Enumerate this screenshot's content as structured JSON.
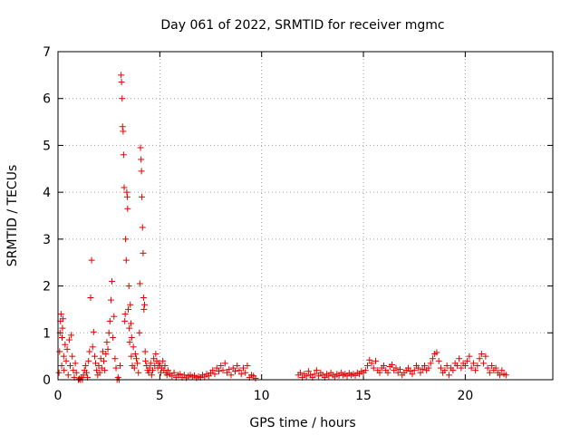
{
  "chart_data": {
    "type": "scatter",
    "title": "Day 061 of 2022, SRMTID for receiver mgmc",
    "xlabel": "GPS time / hours",
    "ylabel": "SRMTID / TECUs",
    "xlim": [
      0,
      24.3
    ],
    "ylim": [
      0,
      7
    ],
    "xticks": [
      0,
      5,
      10,
      15,
      20
    ],
    "yticks": [
      0,
      1,
      2,
      3,
      4,
      5,
      6,
      7
    ],
    "grid": true,
    "marker": "plus",
    "color": "#e00000",
    "series": [
      {
        "name": "SRMTID",
        "points": [
          [
            0.05,
            0.15
          ],
          [
            0.08,
            0.6
          ],
          [
            0.1,
            1.0
          ],
          [
            0.12,
            1.25
          ],
          [
            0.15,
            1.4
          ],
          [
            0.18,
            0.3
          ],
          [
            0.2,
            0.9
          ],
          [
            0.22,
            1.1
          ],
          [
            0.25,
            1.3
          ],
          [
            0.28,
            0.5
          ],
          [
            0.3,
            0.2
          ],
          [
            0.35,
            0.75
          ],
          [
            0.4,
            0.4
          ],
          [
            0.45,
            0.65
          ],
          [
            0.5,
            0.1
          ],
          [
            0.55,
            0.85
          ],
          [
            0.6,
            0.3
          ],
          [
            0.65,
            0.95
          ],
          [
            0.7,
            0.5
          ],
          [
            0.75,
            0.2
          ],
          [
            0.8,
            0.05
          ],
          [
            0.85,
            0.35
          ],
          [
            0.9,
            0.15
          ],
          [
            1.0,
            0.0
          ],
          [
            1.05,
            0.02
          ],
          [
            1.1,
            0.0
          ],
          [
            1.15,
            0.05
          ],
          [
            1.2,
            0.0
          ],
          [
            1.25,
            0.1
          ],
          [
            1.3,
            0.2
          ],
          [
            1.35,
            0.3
          ],
          [
            1.4,
            0.15
          ],
          [
            1.45,
            0.05
          ],
          [
            1.5,
            0.4
          ],
          [
            1.55,
            0.6
          ],
          [
            1.6,
            1.75
          ],
          [
            1.65,
            2.55
          ],
          [
            1.7,
            0.7
          ],
          [
            1.75,
            1.02
          ],
          [
            1.8,
            0.5
          ],
          [
            1.85,
            0.35
          ],
          [
            1.9,
            0.2
          ],
          [
            1.95,
            0.1
          ],
          [
            2.0,
            0.3
          ],
          [
            2.05,
            0.15
          ],
          [
            2.1,
            0.45
          ],
          [
            2.15,
            0.25
          ],
          [
            2.2,
            0.6
          ],
          [
            2.25,
            0.4
          ],
          [
            2.3,
            0.2
          ],
          [
            2.35,
            0.55
          ],
          [
            2.4,
            0.8
          ],
          [
            2.45,
            0.65
          ],
          [
            2.5,
            1.0
          ],
          [
            2.55,
            1.25
          ],
          [
            2.6,
            1.7
          ],
          [
            2.65,
            2.1
          ],
          [
            2.7,
            0.9
          ],
          [
            2.75,
            1.35
          ],
          [
            2.8,
            0.45
          ],
          [
            2.85,
            0.25
          ],
          [
            2.9,
            0.0
          ],
          [
            2.95,
            0.05
          ],
          [
            3.0,
            0.0
          ],
          [
            3.05,
            0.3
          ],
          [
            3.1,
            6.5
          ],
          [
            3.12,
            6.35
          ],
          [
            3.15,
            6.0
          ],
          [
            3.17,
            5.4
          ],
          [
            3.2,
            5.3
          ],
          [
            3.22,
            4.8
          ],
          [
            3.25,
            4.1
          ],
          [
            3.28,
            1.25
          ],
          [
            3.3,
            1.4
          ],
          [
            3.32,
            3.0
          ],
          [
            3.35,
            2.55
          ],
          [
            3.38,
            4.0
          ],
          [
            3.4,
            3.9
          ],
          [
            3.42,
            3.65
          ],
          [
            3.45,
            1.5
          ],
          [
            3.48,
            2.0
          ],
          [
            3.5,
            1.1
          ],
          [
            3.52,
            0.8
          ],
          [
            3.55,
            1.6
          ],
          [
            3.58,
            1.2
          ],
          [
            3.6,
            0.5
          ],
          [
            3.62,
            0.9
          ],
          [
            3.65,
            0.3
          ],
          [
            3.7,
            0.7
          ],
          [
            3.75,
            0.25
          ],
          [
            3.8,
            0.55
          ],
          [
            3.85,
            0.45
          ],
          [
            3.9,
            0.35
          ],
          [
            3.95,
            0.15
          ],
          [
            4.0,
            1.0
          ],
          [
            4.02,
            2.05
          ],
          [
            4.05,
            4.95
          ],
          [
            4.08,
            4.7
          ],
          [
            4.1,
            4.45
          ],
          [
            4.12,
            3.9
          ],
          [
            4.15,
            3.25
          ],
          [
            4.18,
            2.7
          ],
          [
            4.2,
            1.75
          ],
          [
            4.22,
            1.5
          ],
          [
            4.25,
            1.6
          ],
          [
            4.28,
            0.6
          ],
          [
            4.3,
            0.4
          ],
          [
            4.35,
            0.3
          ],
          [
            4.4,
            0.2
          ],
          [
            4.45,
            0.15
          ],
          [
            4.5,
            0.25
          ],
          [
            4.55,
            0.35
          ],
          [
            4.6,
            0.1
          ],
          [
            4.65,
            0.2
          ],
          [
            4.7,
            0.45
          ],
          [
            4.75,
            0.3
          ],
          [
            4.8,
            0.55
          ],
          [
            4.85,
            0.4
          ],
          [
            4.9,
            0.25
          ],
          [
            4.95,
            0.35
          ],
          [
            5.0,
            0.3
          ],
          [
            5.05,
            0.15
          ],
          [
            5.1,
            0.25
          ],
          [
            5.15,
            0.4
          ],
          [
            5.2,
            0.2
          ],
          [
            5.25,
            0.3
          ],
          [
            5.3,
            0.15
          ],
          [
            5.35,
            0.1
          ],
          [
            5.4,
            0.2
          ],
          [
            5.5,
            0.12
          ],
          [
            5.6,
            0.08
          ],
          [
            5.7,
            0.15
          ],
          [
            5.8,
            0.05
          ],
          [
            5.9,
            0.1
          ],
          [
            6.0,
            0.12
          ],
          [
            6.1,
            0.05
          ],
          [
            6.2,
            0.1
          ],
          [
            6.3,
            0.04
          ],
          [
            6.4,
            0.08
          ],
          [
            6.5,
            0.1
          ],
          [
            6.6,
            0.06
          ],
          [
            6.7,
            0.09
          ],
          [
            6.8,
            0.04
          ],
          [
            6.9,
            0.07
          ],
          [
            7.0,
            0.05
          ],
          [
            7.1,
            0.1
          ],
          [
            7.2,
            0.06
          ],
          [
            7.3,
            0.12
          ],
          [
            7.4,
            0.08
          ],
          [
            7.5,
            0.15
          ],
          [
            7.6,
            0.2
          ],
          [
            7.7,
            0.12
          ],
          [
            7.8,
            0.25
          ],
          [
            7.9,
            0.18
          ],
          [
            8.0,
            0.3
          ],
          [
            8.1,
            0.2
          ],
          [
            8.2,
            0.35
          ],
          [
            8.3,
            0.15
          ],
          [
            8.4,
            0.22
          ],
          [
            8.5,
            0.1
          ],
          [
            8.6,
            0.25
          ],
          [
            8.7,
            0.18
          ],
          [
            8.8,
            0.3
          ],
          [
            8.9,
            0.2
          ],
          [
            9.0,
            0.12
          ],
          [
            9.1,
            0.25
          ],
          [
            9.2,
            0.15
          ],
          [
            9.3,
            0.3
          ],
          [
            9.4,
            0.05
          ],
          [
            9.5,
            0.1
          ],
          [
            9.6,
            0.08
          ],
          [
            9.7,
            0.03
          ],
          [
            11.8,
            0.1
          ],
          [
            11.9,
            0.15
          ],
          [
            12.0,
            0.05
          ],
          [
            12.1,
            0.12
          ],
          [
            12.2,
            0.08
          ],
          [
            12.3,
            0.18
          ],
          [
            12.4,
            0.1
          ],
          [
            12.5,
            0.05
          ],
          [
            12.6,
            0.12
          ],
          [
            12.7,
            0.2
          ],
          [
            12.8,
            0.08
          ],
          [
            12.9,
            0.15
          ],
          [
            13.0,
            0.1
          ],
          [
            13.1,
            0.05
          ],
          [
            13.2,
            0.12
          ],
          [
            13.3,
            0.08
          ],
          [
            13.4,
            0.15
          ],
          [
            13.5,
            0.1
          ],
          [
            13.6,
            0.06
          ],
          [
            13.7,
            0.12
          ],
          [
            13.8,
            0.09
          ],
          [
            13.9,
            0.15
          ],
          [
            14.0,
            0.1
          ],
          [
            14.1,
            0.12
          ],
          [
            14.2,
            0.08
          ],
          [
            14.3,
            0.14
          ],
          [
            14.4,
            0.1
          ],
          [
            14.5,
            0.12
          ],
          [
            14.6,
            0.09
          ],
          [
            14.7,
            0.15
          ],
          [
            14.8,
            0.12
          ],
          [
            14.9,
            0.18
          ],
          [
            15.0,
            0.15
          ],
          [
            15.1,
            0.2
          ],
          [
            15.2,
            0.3
          ],
          [
            15.3,
            0.42
          ],
          [
            15.4,
            0.35
          ],
          [
            15.5,
            0.25
          ],
          [
            15.6,
            0.4
          ],
          [
            15.7,
            0.2
          ],
          [
            15.8,
            0.15
          ],
          [
            15.9,
            0.25
          ],
          [
            16.0,
            0.3
          ],
          [
            16.1,
            0.2
          ],
          [
            16.2,
            0.15
          ],
          [
            16.3,
            0.28
          ],
          [
            16.4,
            0.32
          ],
          [
            16.5,
            0.2
          ],
          [
            16.6,
            0.25
          ],
          [
            16.7,
            0.15
          ],
          [
            16.8,
            0.22
          ],
          [
            16.9,
            0.1
          ],
          [
            17.0,
            0.15
          ],
          [
            17.1,
            0.2
          ],
          [
            17.2,
            0.25
          ],
          [
            17.3,
            0.18
          ],
          [
            17.4,
            0.12
          ],
          [
            17.5,
            0.2
          ],
          [
            17.6,
            0.3
          ],
          [
            17.7,
            0.25
          ],
          [
            17.8,
            0.15
          ],
          [
            17.9,
            0.22
          ],
          [
            18.0,
            0.3
          ],
          [
            18.1,
            0.2
          ],
          [
            18.2,
            0.25
          ],
          [
            18.3,
            0.35
          ],
          [
            18.4,
            0.45
          ],
          [
            18.5,
            0.55
          ],
          [
            18.6,
            0.58
          ],
          [
            18.7,
            0.4
          ],
          [
            18.8,
            0.25
          ],
          [
            18.9,
            0.15
          ],
          [
            19.0,
            0.2
          ],
          [
            19.1,
            0.3
          ],
          [
            19.2,
            0.1
          ],
          [
            19.3,
            0.25
          ],
          [
            19.4,
            0.2
          ],
          [
            19.5,
            0.35
          ],
          [
            19.6,
            0.3
          ],
          [
            19.7,
            0.45
          ],
          [
            19.8,
            0.25
          ],
          [
            19.9,
            0.35
          ],
          [
            20.0,
            0.3
          ],
          [
            20.1,
            0.4
          ],
          [
            20.2,
            0.5
          ],
          [
            20.3,
            0.25
          ],
          [
            20.4,
            0.35
          ],
          [
            20.5,
            0.2
          ],
          [
            20.6,
            0.3
          ],
          [
            20.7,
            0.45
          ],
          [
            20.8,
            0.55
          ],
          [
            20.9,
            0.35
          ],
          [
            21.0,
            0.5
          ],
          [
            21.1,
            0.25
          ],
          [
            21.2,
            0.15
          ],
          [
            21.3,
            0.3
          ],
          [
            21.4,
            0.2
          ],
          [
            21.5,
            0.25
          ],
          [
            21.6,
            0.15
          ],
          [
            21.7,
            0.1
          ],
          [
            21.8,
            0.2
          ],
          [
            21.9,
            0.12
          ],
          [
            22.0,
            0.1
          ]
        ]
      }
    ]
  }
}
